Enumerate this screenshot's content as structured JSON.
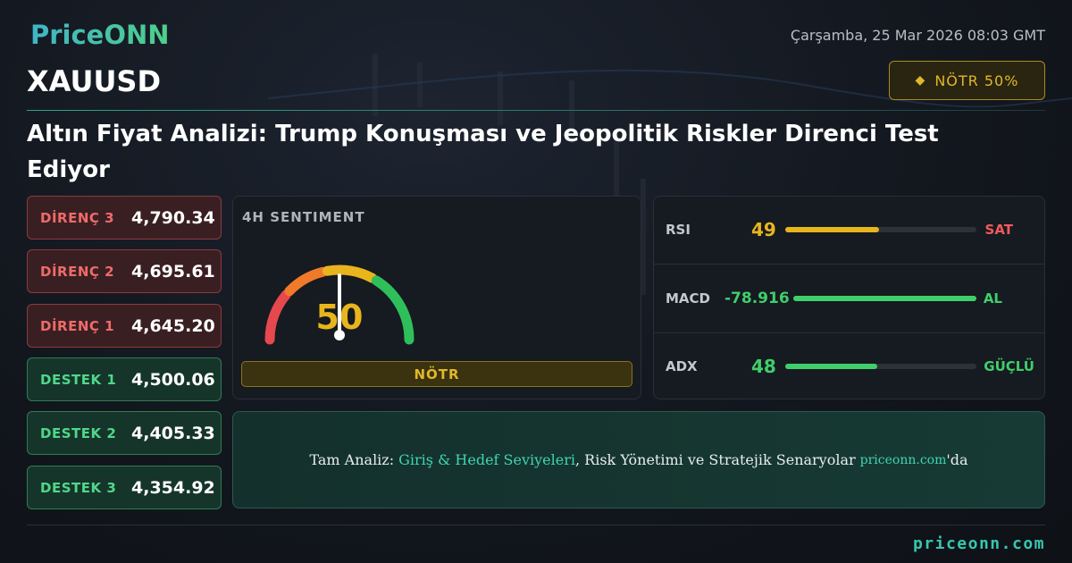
{
  "header": {
    "logo": "PriceONN",
    "date": "Çarşamba, 25 Mar 2026 08:03 GMT",
    "symbol": "XAUUSD",
    "badge": "NÖTR 50%",
    "title": "Altın Fiyat Analizi: Trump Konuşması ve Jeopolitik Riskler Direnci Test Ediyor"
  },
  "levels": [
    {
      "label": "DİRENÇ 3",
      "value": "4,790.34"
    },
    {
      "label": "DİRENÇ 2",
      "value": "4,695.61"
    },
    {
      "label": "DİRENÇ 1",
      "value": "4,645.20"
    },
    {
      "label": "DESTEK 1",
      "value": "4,500.06"
    },
    {
      "label": "DESTEK 2",
      "value": "4,405.33"
    },
    {
      "label": "DESTEK 3",
      "value": "4,354.92"
    }
  ],
  "sentiment": {
    "label": "4H SENTIMENT",
    "value": "50",
    "status": "NÖTR"
  },
  "indicators": [
    {
      "name": "RSI",
      "value": "49",
      "signal": "SAT"
    },
    {
      "name": "MACD",
      "value": "-78.916",
      "signal": "AL"
    },
    {
      "name": "ADX",
      "value": "48",
      "signal": "GÜÇLÜ"
    }
  ],
  "cta": {
    "prefix": "Tam Analiz:",
    "highlight": "Giriş & Hedef Seviyeleri",
    "middle": ", Risk Yönetimi ve Stratejik Senaryolar",
    "site": "priceonn.com",
    "suffix": "'da"
  },
  "footer": {
    "site": "priceonn.com"
  }
}
